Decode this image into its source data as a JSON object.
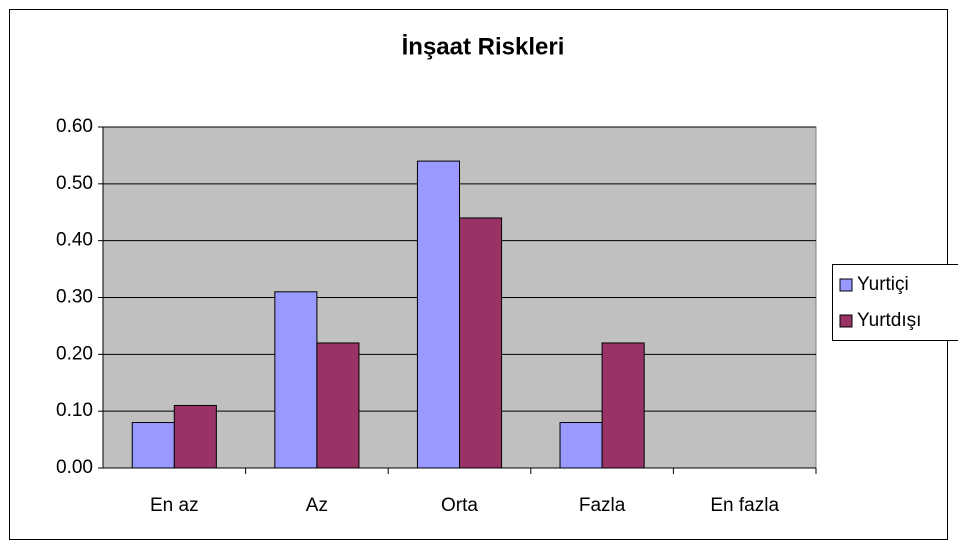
{
  "chart_data": {
    "type": "bar",
    "title": "İnşaat Riskleri",
    "categories": [
      "En az",
      "Az",
      "Orta",
      "Fazla",
      "En fazla"
    ],
    "series": [
      {
        "name": "Yurtiçi",
        "color": "#9999ff",
        "values": [
          0.08,
          0.31,
          0.54,
          0.08,
          0
        ]
      },
      {
        "name": "Yurtdışı",
        "color": "#993366",
        "values": [
          0.11,
          0.22,
          0.44,
          0.22,
          0
        ]
      }
    ],
    "ylim": [
      0,
      0.6
    ],
    "yticks": [
      {
        "value": 0,
        "label": "0.00"
      },
      {
        "value": 0.1,
        "label": "0.10"
      },
      {
        "value": 0.2,
        "label": "0.20"
      },
      {
        "value": 0.3,
        "label": "0.30"
      },
      {
        "value": 0.4,
        "label": "0.40"
      },
      {
        "value": 0.5,
        "label": "0.50"
      },
      {
        "value": 0.6,
        "label": "0.60"
      }
    ],
    "grid": true,
    "legend": "right"
  }
}
